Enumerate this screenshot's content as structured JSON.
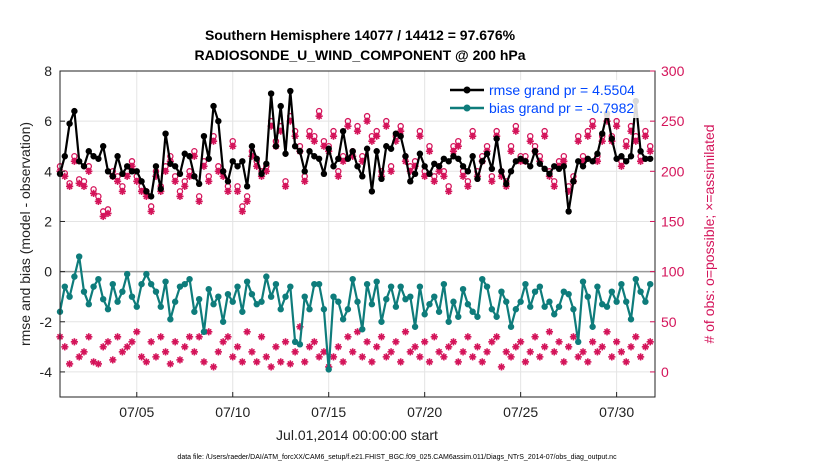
{
  "chart_data": {
    "type": "line",
    "title_line1": "Southern Hemisphere 14077 / 14412 = 97.676%",
    "title_line2": "RADIOSONDE_U_WIND_COMPONENT @ 200 hPa",
    "ylabel_left": "rmse and bias (model - observation)",
    "ylabel_right": "# of obs: o=possible; ×=assimilated",
    "xlabel": "Jul.01,2014 00:00:00 start",
    "footnote": "data file: /Users/raeder/DAI/ATM_forcXX/CAM6_setup/f.e21.FHIST_BGC.f09_025.CAM6assim.011/Diags_NTrS_2014-07/obs_diag_output.nc",
    "xlim": [
      1,
      32
    ],
    "ylim_left": [
      -5,
      8
    ],
    "ylim_right": [
      -25,
      300
    ],
    "yticks_left": [
      -4,
      -2,
      0,
      2,
      4,
      6,
      8
    ],
    "yticks_right": [
      0,
      50,
      100,
      150,
      200,
      250,
      300
    ],
    "xticks": [
      {
        "value": 5,
        "label": "07/05"
      },
      {
        "value": 10,
        "label": "07/10"
      },
      {
        "value": 15,
        "label": "07/15"
      },
      {
        "value": 20,
        "label": "07/20"
      },
      {
        "value": 25,
        "label": "07/25"
      },
      {
        "value": 30,
        "label": "07/30"
      }
    ],
    "legend": [
      {
        "label": "rmse grand pr = 4.5504",
        "color": "#000000"
      },
      {
        "label": "bias grand pr = -0.7982",
        "color": "#0e7c7b"
      }
    ],
    "colors": {
      "rmse": "#000000",
      "bias": "#0e7c7b",
      "obs": "#d4145a",
      "zero": "#9a9a9a"
    },
    "x": [
      1.0,
      1.25,
      1.5,
      1.75,
      2.0,
      2.25,
      2.5,
      2.75,
      3.0,
      3.25,
      3.5,
      3.75,
      4.0,
      4.25,
      4.5,
      4.75,
      5.0,
      5.25,
      5.5,
      5.75,
      6.0,
      6.25,
      6.5,
      6.75,
      7.0,
      7.25,
      7.5,
      7.75,
      8.0,
      8.25,
      8.5,
      8.75,
      9.0,
      9.25,
      9.5,
      9.75,
      10.0,
      10.25,
      10.5,
      10.75,
      11.0,
      11.25,
      11.5,
      11.75,
      12.0,
      12.25,
      12.5,
      12.75,
      13.0,
      13.25,
      13.5,
      13.75,
      14.0,
      14.25,
      14.5,
      14.75,
      15.0,
      15.25,
      15.5,
      15.75,
      16.0,
      16.25,
      16.5,
      16.75,
      17.0,
      17.25,
      17.5,
      17.75,
      18.0,
      18.25,
      18.5,
      18.75,
      19.0,
      19.25,
      19.5,
      19.75,
      20.0,
      20.25,
      20.5,
      20.75,
      21.0,
      21.25,
      21.5,
      21.75,
      22.0,
      22.25,
      22.5,
      22.75,
      23.0,
      23.25,
      23.5,
      23.75,
      24.0,
      24.25,
      24.5,
      24.75,
      25.0,
      25.25,
      25.5,
      25.75,
      26.0,
      26.25,
      26.5,
      26.75,
      27.0,
      27.25,
      27.5,
      27.75,
      28.0,
      28.25,
      28.5,
      28.75,
      29.0,
      29.25,
      29.5,
      29.75,
      30.0,
      30.25,
      30.5,
      30.75,
      31.0,
      31.25,
      31.5,
      31.75
    ],
    "rmse": [
      3.9,
      4.6,
      5.9,
      6.4,
      4.4,
      4.2,
      4.8,
      4.6,
      4.5,
      5.0,
      4.0,
      3.8,
      4.6,
      3.9,
      4.2,
      4.0,
      4.0,
      3.6,
      3.2,
      3.0,
      4.2,
      3.3,
      5.5,
      4.3,
      4.2,
      3.9,
      4.7,
      4.6,
      3.8,
      3.5,
      5.4,
      4.5,
      6.6,
      6.0,
      4.0,
      3.6,
      4.4,
      4.2,
      4.4,
      3.4,
      5.0,
      4.5,
      3.9,
      4.3,
      7.1,
      5.0,
      6.6,
      4.7,
      7.2,
      5.0,
      4.8,
      4.0,
      4.8,
      4.6,
      4.5,
      3.9,
      4.9,
      4.2,
      4.5,
      5.6,
      4.5,
      4.8,
      4.2,
      3.8,
      4.9,
      3.2,
      4.8,
      3.7,
      5.0,
      4.9,
      5.5,
      5.4,
      4.6,
      3.6,
      3.9,
      4.7,
      4.2,
      3.9,
      4.3,
      4.2,
      4.5,
      4.4,
      4.6,
      4.5,
      4.2,
      4.0,
      4.6,
      3.7,
      4.4,
      4.7,
      4.1,
      5.3,
      4.0,
      3.5,
      4.0,
      4.4,
      4.5,
      4.4,
      4.2,
      4.8,
      4.3,
      4.1,
      3.9,
      4.2,
      4.1,
      4.2,
      2.4,
      3.6,
      4.4,
      4.2,
      4.5,
      4.4,
      4.7,
      5.5,
      6.3,
      5.3,
      4.5,
      4.6,
      4.4,
      4.6,
      6.8,
      4.8,
      4.5,
      4.5,
      5.0,
      4.2,
      4.8,
      4.4,
      3.9,
      4.4,
      4.8,
      4.2,
      3.8,
      3.8
    ],
    "bias": [
      -1.6,
      -0.6,
      -1.0,
      -0.2,
      0.6,
      -0.8,
      -1.3,
      -0.6,
      -0.3,
      -1.1,
      -1.5,
      -0.5,
      -1.2,
      -0.8,
      -0.1,
      -1.0,
      -1.4,
      -0.5,
      -0.1,
      -0.5,
      -0.8,
      -1.4,
      -0.4,
      -1.9,
      -1.2,
      -0.6,
      -0.5,
      -0.3,
      -1.6,
      -1.1,
      -2.4,
      -0.7,
      -1.3,
      -1.0,
      -2.0,
      -0.9,
      -1.2,
      -0.6,
      -1.6,
      -0.4,
      -0.9,
      -1.3,
      -1.2,
      -0.2,
      -1.0,
      -0.5,
      -1.5,
      -1.0,
      -0.6,
      -2.8,
      -2.9,
      -1.0,
      -1.5,
      -0.5,
      -0.5,
      -1.5,
      -3.9,
      -1.0,
      -1.2,
      -1.9,
      -1.5,
      -0.3,
      -1.2,
      -2.3,
      -0.5,
      -1.3,
      -0.4,
      -2.0,
      -1.1,
      -0.6,
      -1.4,
      -0.6,
      -1.1,
      -1.0,
      -2.2,
      -0.6,
      -1.7,
      -1.3,
      -1.0,
      -1.6,
      -0.5,
      -2.0,
      -1.2,
      -1.8,
      -0.7,
      -1.3,
      -1.6,
      -1.8,
      -0.3,
      -0.6,
      -1.5,
      -1.8,
      -0.8,
      -1.2,
      -2.2,
      -1.5,
      -1.2,
      -0.5,
      -1.4,
      -0.8,
      -0.6,
      -1.4,
      -1.2,
      -1.7,
      -1.4,
      -0.8,
      -0.9,
      -1.5,
      -2.8,
      -0.4,
      -1.0,
      -2.2,
      -0.6,
      -1.3,
      -1.4,
      -0.8,
      -1.2,
      -0.5,
      -1.2,
      -1.9,
      -0.3,
      -0.8,
      -1.2,
      -0.5,
      -1.4,
      -1.6,
      -1.8,
      -2.4,
      -1.3,
      -0.4,
      -1.5,
      -0.9
    ],
    "obs_possible": [
      205,
      198,
      188,
      215,
      192,
      190,
      205,
      182,
      175,
      160,
      162,
      200,
      195,
      185,
      200,
      210,
      195,
      185,
      180,
      165,
      200,
      185,
      205,
      215,
      195,
      180,
      190,
      200,
      220,
      175,
      210,
      195,
      235,
      205,
      200,
      185,
      230,
      185,
      165,
      175,
      220,
      210,
      200,
      205,
      250,
      230,
      245,
      190,
      255,
      240,
      225,
      195,
      240,
      235,
      260,
      230,
      225,
      240,
      200,
      215,
      250,
      220,
      245,
      215,
      255,
      235,
      240,
      200,
      250,
      205,
      235,
      245,
      215,
      205,
      210,
      240,
      200,
      225,
      195,
      205,
      200,
      185,
      225,
      230,
      200,
      190,
      240,
      200,
      215,
      225,
      195,
      240,
      200,
      190,
      225,
      245,
      215,
      215,
      235,
      225,
      215,
      240,
      200,
      190,
      210,
      215,
      185,
      195,
      235,
      215,
      240,
      250,
      215,
      235,
      255,
      235,
      250,
      210,
      230,
      245,
      235,
      215,
      240,
      225,
      215,
      200,
      210,
      205,
      185,
      190,
      190,
      205
    ],
    "obs_assimilated": [
      200,
      195,
      185,
      210,
      188,
      185,
      200,
      178,
      170,
      155,
      158,
      195,
      190,
      180,
      195,
      205,
      190,
      180,
      175,
      160,
      195,
      180,
      200,
      210,
      190,
      175,
      185,
      195,
      215,
      170,
      205,
      190,
      230,
      200,
      195,
      180,
      225,
      180,
      160,
      170,
      215,
      205,
      195,
      200,
      245,
      225,
      240,
      185,
      250,
      235,
      220,
      190,
      235,
      230,
      255,
      225,
      220,
      235,
      195,
      210,
      245,
      215,
      240,
      210,
      250,
      230,
      235,
      195,
      245,
      200,
      230,
      240,
      210,
      200,
      205,
      235,
      195,
      220,
      190,
      200,
      195,
      180,
      220,
      225,
      195,
      185,
      235,
      195,
      210,
      220,
      190,
      235,
      195,
      185,
      220,
      240,
      210,
      210,
      230,
      220,
      210,
      235,
      195,
      185,
      205,
      210,
      180,
      190,
      230,
      210,
      235,
      245,
      210,
      230,
      250,
      230,
      245,
      205,
      225,
      240,
      230,
      210,
      235,
      220,
      210,
      195,
      205,
      200,
      180,
      185,
      185,
      200
    ],
    "obs_lower": [
      35,
      25,
      8,
      30,
      15,
      20,
      35,
      10,
      8,
      25,
      30,
      12,
      35,
      20,
      25,
      30,
      40,
      15,
      10,
      30,
      15,
      35,
      20,
      8,
      30,
      12,
      25,
      35,
      20,
      35,
      10,
      40,
      5,
      20,
      30,
      35,
      15,
      25,
      10,
      40,
      20,
      10,
      35,
      15,
      5,
      25,
      10,
      30,
      8,
      20,
      45,
      10,
      25,
      30,
      15,
      20,
      5,
      15,
      25,
      10,
      35,
      20,
      40,
      15,
      30,
      10,
      25,
      35,
      15,
      20,
      30,
      10,
      40,
      20,
      25,
      15,
      30,
      10,
      35,
      20,
      15,
      25,
      30,
      10,
      20,
      35,
      15,
      25,
      10,
      20,
      30,
      35,
      5,
      20,
      15,
      25,
      30,
      10,
      20,
      35,
      15,
      25,
      40,
      20,
      30,
      10,
      25,
      35,
      15,
      20,
      10,
      30,
      20,
      25,
      40,
      15,
      30,
      20,
      10,
      25,
      35,
      15,
      25,
      30,
      10,
      20,
      35,
      15,
      25,
      5,
      30,
      0
    ]
  }
}
